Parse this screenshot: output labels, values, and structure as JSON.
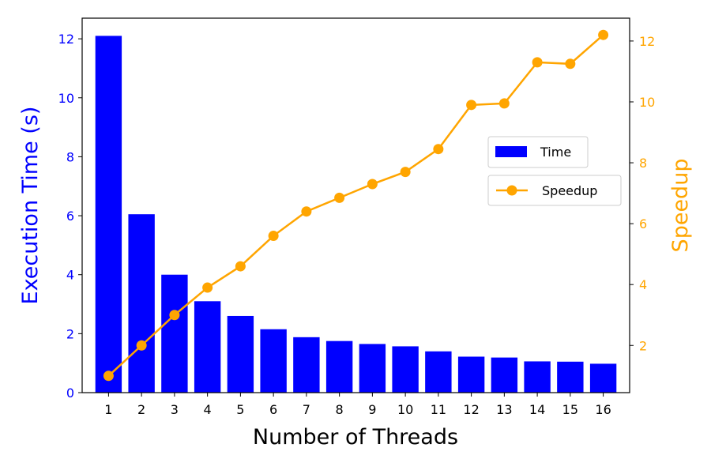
{
  "chart_data": {
    "type": "bar+line",
    "categories": [
      "1",
      "2",
      "3",
      "4",
      "5",
      "6",
      "7",
      "8",
      "9",
      "10",
      "11",
      "12",
      "13",
      "14",
      "15",
      "16"
    ],
    "series": [
      {
        "name": "Time",
        "type": "bar",
        "axis": "left",
        "color": "#0000ff",
        "values": [
          12.1,
          6.05,
          4.0,
          3.1,
          2.6,
          2.15,
          1.88,
          1.75,
          1.65,
          1.57,
          1.4,
          1.22,
          1.19,
          1.06,
          1.05,
          0.98
        ]
      },
      {
        "name": "Speedup",
        "type": "line",
        "axis": "right",
        "color": "#ffa500",
        "values": [
          1.0,
          2.0,
          3.0,
          3.9,
          4.6,
          5.6,
          6.4,
          6.85,
          7.3,
          7.7,
          8.45,
          9.9,
          9.95,
          11.3,
          11.25,
          12.2
        ]
      }
    ],
    "xlabel": "Number of Threads",
    "ylabel_left": "Execution Time (s)",
    "ylabel_right": "Speedup",
    "ylim_left": [
      0,
      12.7
    ],
    "ylim_right": [
      0.45,
      12.75
    ],
    "yticks_left": [
      "0",
      "2",
      "4",
      "6",
      "8",
      "10",
      "12"
    ],
    "yticks_right": [
      "2",
      "4",
      "6",
      "8",
      "10",
      "12"
    ],
    "legend_placement": "center-right",
    "grid": false
  }
}
